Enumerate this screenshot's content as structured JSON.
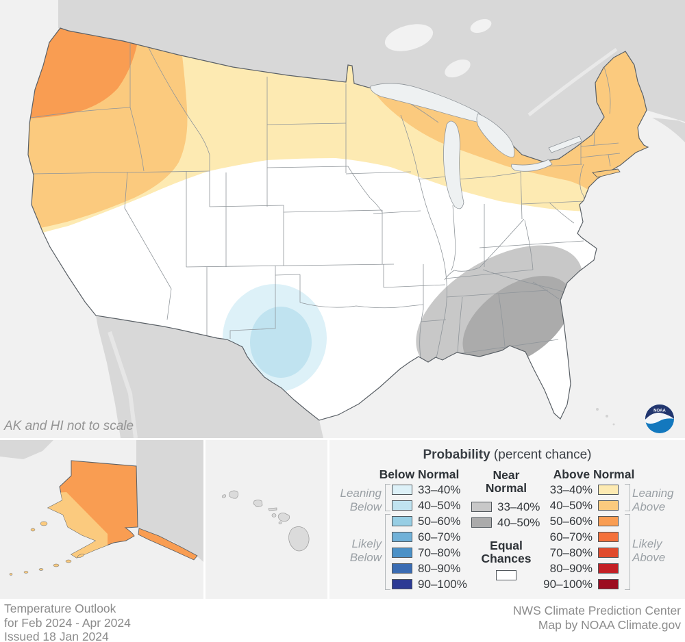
{
  "map": {
    "note": "AK and HI not to scale",
    "noaa_logo_text": "NOAA"
  },
  "legend": {
    "title_bold": "Probability",
    "title_rest": " (percent chance)",
    "below_header": "Below Normal",
    "near_header_lines": [
      "Near",
      "Normal"
    ],
    "above_header": "Above Normal",
    "ranges": [
      "33–40%",
      "40–50%",
      "50–60%",
      "60–70%",
      "70–80%",
      "80–90%",
      "90–100%"
    ],
    "near_ranges": [
      "33–40%",
      "40–50%"
    ],
    "equal_lines": [
      "Equal",
      "Chances"
    ],
    "labels": {
      "below_leaning": [
        "Leaning",
        "Below"
      ],
      "below_likely": [
        "Likely",
        "Below"
      ],
      "above_leaning": [
        "Leaning",
        "Above"
      ],
      "above_likely": [
        "Likely",
        "Above"
      ]
    }
  },
  "footer": {
    "left_lines": [
      "Temperature Outlook",
      "for Feb 2024 - Apr 2024",
      "Issued 18 Jan 2024"
    ],
    "right_lines": [
      "NWS Climate Prediction Center",
      "Map by NOAA Climate.gov"
    ]
  },
  "colors": {
    "below": [
      "#ddf1f8",
      "#c0e3f0",
      "#97cee4",
      "#70b1d8",
      "#4b91c7",
      "#3a6cb3",
      "#2c3a94"
    ],
    "above": [
      "#fdeab2",
      "#fbca7e",
      "#f99d52",
      "#f4713b",
      "#e14b2d",
      "#c32026",
      "#9c0c20"
    ],
    "near": [
      "#c8c8c8",
      "#ababab"
    ],
    "equal": "#ffffff",
    "ocean": "#f1f1f1",
    "foreign_land": "#d8d8d8",
    "us_fill": "#ffffff",
    "lake": "#eef1f2",
    "outline": "#5a6066",
    "state_line": "#8f959a",
    "note_text": "#949494",
    "footer_text": "#8c8c8c",
    "noaa_navy": "#22356e",
    "noaa_blue": "#1378be"
  }
}
